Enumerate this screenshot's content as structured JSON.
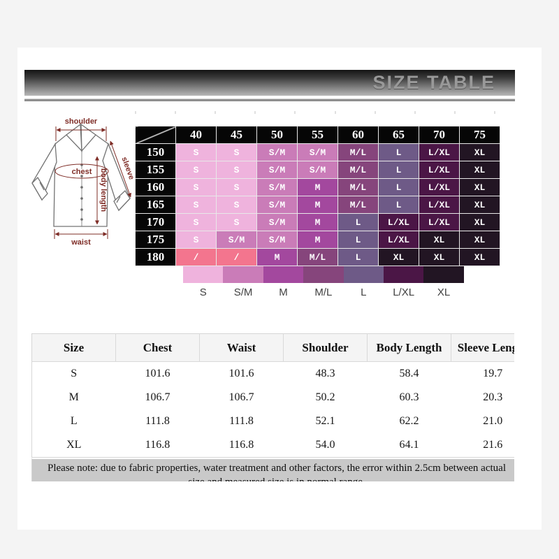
{
  "banner": {
    "title": "SIZE TABLE"
  },
  "diagram": {
    "shoulder_label": "shoulder",
    "chest_label": "chest",
    "sleeve_label": "sleeve",
    "body_length_label": "body length",
    "waist_label": "waist"
  },
  "matrix": {
    "columns": [
      "40",
      "45",
      "50",
      "55",
      "60",
      "65",
      "70",
      "75"
    ],
    "rows": [
      {
        "label": "150",
        "cells": [
          "S",
          "S",
          "S/M",
          "S/M",
          "M/L",
          "L",
          "L/XL",
          "XL"
        ]
      },
      {
        "label": "155",
        "cells": [
          "S",
          "S",
          "S/M",
          "S/M",
          "M/L",
          "L",
          "L/XL",
          "XL"
        ]
      },
      {
        "label": "160",
        "cells": [
          "S",
          "S",
          "S/M",
          "M",
          "M/L",
          "L",
          "L/XL",
          "XL"
        ]
      },
      {
        "label": "165",
        "cells": [
          "S",
          "S",
          "S/M",
          "M",
          "M/L",
          "L",
          "L/XL",
          "XL"
        ]
      },
      {
        "label": "170",
        "cells": [
          "S",
          "S",
          "S/M",
          "M",
          "L",
          "L/XL",
          "L/XL",
          "XL"
        ]
      },
      {
        "label": "175",
        "cells": [
          "S",
          "S/M",
          "S/M",
          "M",
          "L",
          "L/XL",
          "XL",
          "XL"
        ]
      },
      {
        "label": "180",
        "cells": [
          "/",
          "/",
          "M",
          "M/L",
          "L",
          "XL",
          "XL",
          "XL"
        ]
      }
    ],
    "colors": {
      "S": "#efb3dd",
      "S/M": "#ca7cb8",
      "M": "#a3489e",
      "M/L": "#86457c",
      "L": "#6e5a87",
      "L/XL": "#4b1646",
      "XL": "#221523",
      "/": "#f3758e"
    },
    "header_bg": "#060606"
  },
  "legend": {
    "items": [
      {
        "label": "S",
        "color": "#efb3dd"
      },
      {
        "label": "S/M",
        "color": "#ca7cb8"
      },
      {
        "label": "M",
        "color": "#a3489e"
      },
      {
        "label": "M/L",
        "color": "#86457c"
      },
      {
        "label": "L",
        "color": "#6e5a87"
      },
      {
        "label": "L/XL",
        "color": "#4b1646"
      },
      {
        "label": "XL",
        "color": "#221523"
      }
    ]
  },
  "measurements": {
    "headers": [
      "Size",
      "Chest",
      "Waist",
      "Shoulder",
      "Body Length",
      "Sleeve Length"
    ],
    "rows": [
      [
        "S",
        "101.6",
        "101.6",
        "48.3",
        "58.4",
        "19.7"
      ],
      [
        "M",
        "106.7",
        "106.7",
        "50.2",
        "60.3",
        "20.3"
      ],
      [
        "L",
        "111.8",
        "111.8",
        "52.1",
        "62.2",
        "21.0"
      ],
      [
        "XL",
        "116.8",
        "116.8",
        "54.0",
        "64.1",
        "21.6"
      ]
    ]
  },
  "note": {
    "text": "Please note: due to fabric properties, water treatment and other factors, the error within 2.5cm between actual size and measured size is in normal range."
  }
}
